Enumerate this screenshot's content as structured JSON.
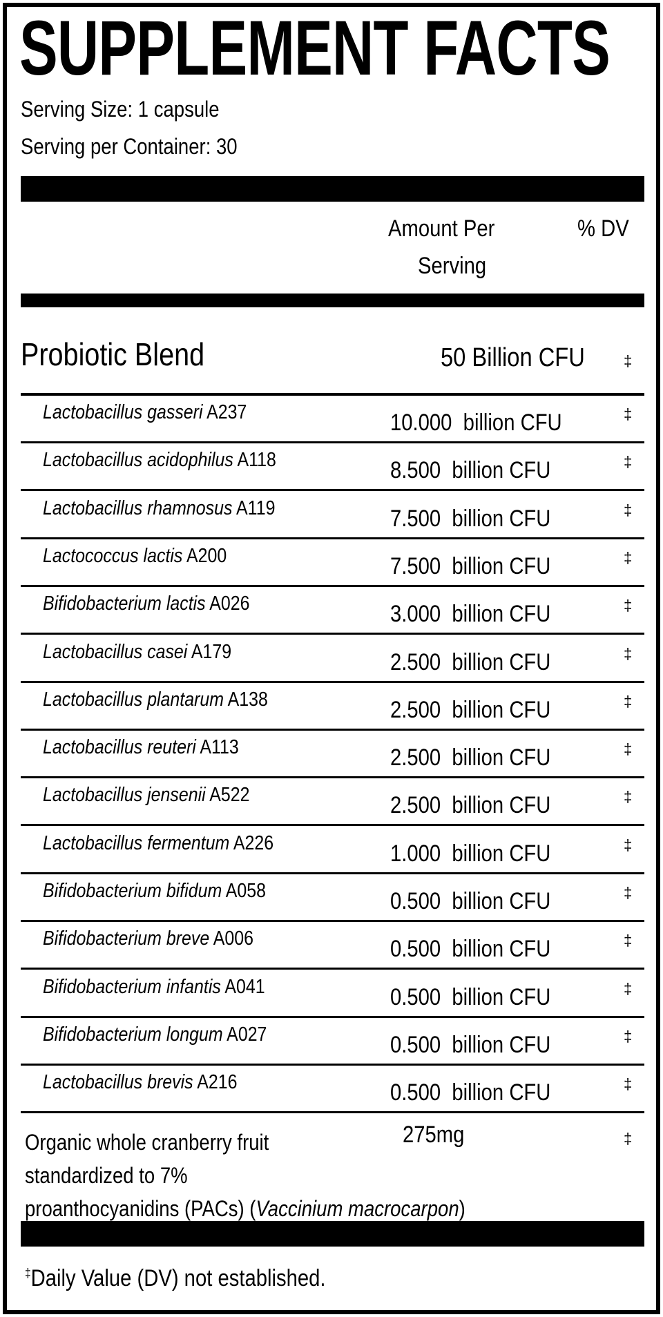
{
  "title": "SUPPLEMENT FACTS",
  "serving_size": "Serving Size: 1 capsule",
  "servings_per_container": "Serving per Container: 30",
  "header": {
    "amount_line1": "Amount Per",
    "amount_line2": "Serving",
    "dv": "% DV"
  },
  "blend": {
    "name": "Probiotic Blend",
    "amount": "50 Billion CFU",
    "dv": "‡"
  },
  "strains": [
    {
      "species": "Lactobacillus gasseri",
      "strain": "A237",
      "amount": "10.000  billion CFU",
      "dv": "‡"
    },
    {
      "species": "Lactobacillus acidophilus",
      "strain": "A118",
      "amount": "8.500  billion CFU",
      "dv": "‡"
    },
    {
      "species": "Lactobacillus rhamnosus",
      "strain": "A119",
      "amount": "7.500  billion CFU",
      "dv": "‡"
    },
    {
      "species": "Lactococcus lactis",
      "strain": "A200",
      "amount": "7.500  billion CFU",
      "dv": "‡"
    },
    {
      "species": "Bifidobacterium lactis",
      "strain": "A026",
      "amount": "3.000  billion CFU",
      "dv": "‡"
    },
    {
      "species": "Lactobacillus casei",
      "strain": "A179",
      "amount": "2.500  billion CFU",
      "dv": "‡"
    },
    {
      "species": "Lactobacillus plantarum",
      "strain": "A138",
      "amount": "2.500  billion CFU",
      "dv": "‡"
    },
    {
      "species": "Lactobacillus reuteri",
      "strain": "A113",
      "amount": "2.500  billion CFU",
      "dv": "‡"
    },
    {
      "species": "Lactobacillus jensenii",
      "strain": "A522",
      "amount": "2.500  billion CFU",
      "dv": "‡"
    },
    {
      "species": "Lactobacillus fermentum",
      "strain": "A226",
      "amount": "1.000  billion CFU",
      "dv": "‡"
    },
    {
      "species": "Bifidobacterium bifidum",
      "strain": "A058",
      "amount": "0.500  billion CFU",
      "dv": "‡"
    },
    {
      "species": "Bifidobacterium breve",
      "strain": "A006",
      "amount": "0.500  billion CFU",
      "dv": "‡"
    },
    {
      "species": "Bifidobacterium infantis",
      "strain": "A041",
      "amount": "0.500  billion CFU",
      "dv": "‡"
    },
    {
      "species": "Bifidobacterium longum",
      "strain": "A027",
      "amount": "0.500  billion CFU",
      "dv": "‡"
    },
    {
      "species": "Lactobacillus brevis",
      "strain": "A216",
      "amount": "0.500  billion CFU",
      "dv": "‡"
    }
  ],
  "cranberry": {
    "line1": "Organic whole cranberry fruit",
    "line2": "standardized to 7%",
    "line3_plain": "proanthocyanidins (PACs) (",
    "line3_italic": "Vaccinium macrocarpon",
    "line3_end": ")",
    "amount": "275mg",
    "dv": "‡"
  },
  "footnote": {
    "symbol": "‡",
    "text": "Daily Value (DV) not established."
  }
}
